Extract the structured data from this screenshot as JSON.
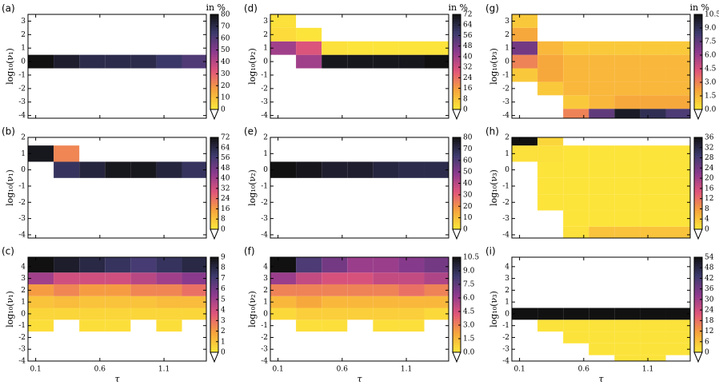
{
  "chart_data": [
    {
      "type": "heatmap",
      "label": "(a)",
      "unit": "in %",
      "ylabel": "log₁₀(ν₁)",
      "xlim": [
        0.04,
        1.43
      ],
      "xticks": [
        0.1,
        0.6,
        1.1
      ],
      "ylim": [
        -4.2,
        3.5
      ],
      "yticks": [
        -4,
        -3,
        -2,
        -1,
        0,
        1,
        2,
        3
      ],
      "xbins": [
        0.04,
        0.24,
        0.44,
        0.64,
        0.84,
        1.04,
        1.24,
        1.43
      ],
      "ybins": [
        -4.2,
        -3.5,
        -2.5,
        -1.5,
        -0.5,
        0.5,
        1.5,
        2.5,
        3.5
      ],
      "matrix": [
        [
          null,
          null,
          null,
          null,
          null,
          null,
          null
        ],
        [
          null,
          null,
          null,
          null,
          null,
          null,
          null
        ],
        [
          null,
          null,
          null,
          null,
          null,
          null,
          null
        ],
        [
          null,
          null,
          null,
          null,
          null,
          null,
          null
        ],
        [
          80,
          75,
          70,
          70,
          70,
          65,
          60
        ],
        [
          null,
          null,
          null,
          null,
          null,
          null,
          null
        ],
        [
          null,
          null,
          null,
          null,
          null,
          null,
          null
        ],
        [
          null,
          null,
          null,
          null,
          null,
          null,
          null
        ]
      ],
      "clim": [
        0,
        80
      ],
      "cticks": [
        0,
        10,
        20,
        30,
        40,
        50,
        60,
        70,
        80
      ],
      "colormap": [
        "#fde93b",
        "#f7a53c",
        "#e2567a",
        "#8e3a8e",
        "#3d3b6e",
        "#111111"
      ]
    },
    {
      "type": "heatmap",
      "label": "(b)",
      "ylabel": "log₁₀(ν₁)",
      "xlim": [
        0.04,
        1.43
      ],
      "xticks": [
        0.1,
        0.6,
        1.1
      ],
      "ylim": [
        -4.2,
        2
      ],
      "yticks": [
        -4,
        -3,
        -2,
        -1,
        0,
        1,
        2
      ],
      "xbins": [
        0.04,
        0.24,
        0.44,
        0.64,
        0.84,
        1.04,
        1.24,
        1.43
      ],
      "ybins": [
        -4.2,
        -3.5,
        -2.5,
        -1.5,
        -0.5,
        0.5,
        1.5,
        2
      ],
      "matrix": [
        [
          null,
          null,
          null,
          null,
          null,
          null,
          null
        ],
        [
          null,
          null,
          null,
          null,
          null,
          null,
          null
        ],
        [
          null,
          null,
          null,
          null,
          null,
          null,
          null
        ],
        [
          null,
          null,
          null,
          null,
          null,
          null,
          null
        ],
        [
          null,
          60,
          65,
          70,
          70,
          65,
          60
        ],
        [
          70,
          20,
          null,
          null,
          null,
          null,
          null
        ],
        [
          null,
          null,
          null,
          null,
          null,
          null,
          null
        ]
      ],
      "clim": [
        0,
        72
      ],
      "cticks": [
        0,
        8,
        16,
        24,
        32,
        40,
        48,
        56,
        64,
        72
      ],
      "colormap": [
        "#fde93b",
        "#f7a53c",
        "#e2567a",
        "#8e3a8e",
        "#3d3b6e",
        "#111111"
      ]
    },
    {
      "type": "heatmap",
      "label": "(c)",
      "ylabel": "log₁₀(ν₁)",
      "xlabel": "τ",
      "xlim": [
        0.04,
        1.43
      ],
      "xticks": [
        0.1,
        0.6,
        1.1
      ],
      "ylim": [
        -4,
        4.8
      ],
      "yticks": [
        -4,
        -3,
        -2,
        -1,
        0,
        1,
        2,
        3,
        4
      ],
      "xbins": [
        0.04,
        0.24,
        0.44,
        0.64,
        0.84,
        1.04,
        1.24,
        1.43
      ],
      "ybins": [
        -4,
        -3.5,
        -2.5,
        -1.5,
        -0.5,
        0.5,
        1.5,
        2.5,
        3.5,
        4.8
      ],
      "matrix": [
        [
          null,
          null,
          null,
          null,
          null,
          null,
          null
        ],
        [
          null,
          null,
          null,
          null,
          null,
          null,
          null
        ],
        [
          null,
          null,
          null,
          null,
          null,
          null,
          null
        ],
        [
          0.3,
          null,
          0.3,
          0.3,
          null,
          0.3,
          null
        ],
        [
          0.5,
          0.5,
          0.5,
          0.5,
          0.5,
          0.5,
          0.5
        ],
        [
          1,
          1.2,
          1,
          1,
          1,
          1.2,
          1.2
        ],
        [
          2,
          2.5,
          2,
          2,
          2.5,
          2.5,
          3
        ],
        [
          5,
          4,
          4,
          4,
          4.5,
          5,
          5.5
        ],
        [
          9,
          8.5,
          8,
          7.5,
          7,
          7.5,
          8
        ]
      ],
      "clim": [
        0,
        9
      ],
      "cticks": [
        0,
        1,
        2,
        3,
        4,
        5,
        6,
        7,
        8,
        9
      ],
      "colormap": [
        "#fde93b",
        "#f7a53c",
        "#e2567a",
        "#8e3a8e",
        "#3d3b6e",
        "#111111"
      ]
    },
    {
      "type": "heatmap",
      "label": "(d)",
      "unit": "in %",
      "ylabel": "log₁₀(ν₂)",
      "xlim": [
        0.04,
        1.43
      ],
      "xticks": [
        0.1,
        0.6,
        1.1
      ],
      "ylim": [
        -4.2,
        3.5
      ],
      "yticks": [
        -4,
        -3,
        -2,
        -1,
        0,
        1,
        2,
        3
      ],
      "xbins": [
        0.04,
        0.24,
        0.44,
        0.64,
        0.84,
        1.04,
        1.24,
        1.43
      ],
      "ybins": [
        -4.2,
        -3.5,
        -2.5,
        -1.5,
        -0.5,
        0.5,
        1.5,
        2.5,
        3.5
      ],
      "matrix": [
        [
          null,
          null,
          null,
          null,
          null,
          null,
          null
        ],
        [
          null,
          null,
          null,
          null,
          null,
          null,
          null
        ],
        [
          null,
          null,
          null,
          null,
          null,
          null,
          null
        ],
        [
          null,
          null,
          null,
          null,
          null,
          null,
          null
        ],
        [
          null,
          40,
          70,
          70,
          70,
          70,
          72
        ],
        [
          40,
          30,
          2,
          1,
          1,
          1,
          1
        ],
        [
          3,
          1,
          null,
          null,
          null,
          null,
          null
        ],
        [
          2,
          null,
          null,
          null,
          null,
          null,
          null
        ]
      ],
      "clim": [
        0,
        72
      ],
      "cticks": [
        0,
        8,
        16,
        24,
        32,
        40,
        48,
        56,
        64,
        72
      ],
      "colormap": [
        "#fde93b",
        "#f7a53c",
        "#e2567a",
        "#8e3a8e",
        "#3d3b6e",
        "#111111"
      ]
    },
    {
      "type": "heatmap",
      "label": "(e)",
      "ylabel": "log₁₀(ν₂)",
      "xlim": [
        0.04,
        1.43
      ],
      "xticks": [
        0.1,
        0.6,
        1.1
      ],
      "ylim": [
        -4.2,
        2
      ],
      "yticks": [
        -4,
        -3,
        -2,
        -1,
        0,
        1,
        2
      ],
      "xbins": [
        0.04,
        0.24,
        0.44,
        0.64,
        0.84,
        1.04,
        1.24,
        1.43
      ],
      "ybins": [
        -4.2,
        -3.5,
        -2.5,
        -1.5,
        -0.5,
        0.5,
        1.5,
        2
      ],
      "matrix": [
        [
          null,
          null,
          null,
          null,
          null,
          null,
          null
        ],
        [
          null,
          null,
          null,
          null,
          null,
          null,
          null
        ],
        [
          null,
          null,
          null,
          null,
          null,
          null,
          null
        ],
        [
          null,
          null,
          null,
          null,
          null,
          null,
          null
        ],
        [
          80,
          78,
          75,
          75,
          72,
          70,
          70
        ],
        [
          null,
          null,
          null,
          null,
          null,
          null,
          null
        ],
        [
          null,
          null,
          null,
          null,
          null,
          null,
          null
        ]
      ],
      "clim": [
        0,
        80
      ],
      "cticks": [
        0,
        10,
        20,
        30,
        40,
        50,
        60,
        70,
        80
      ],
      "colormap": [
        "#fde93b",
        "#f7a53c",
        "#e2567a",
        "#8e3a8e",
        "#3d3b6e",
        "#111111"
      ]
    },
    {
      "type": "heatmap",
      "label": "(f)",
      "ylabel": "log₁₀(ν₂)",
      "xlabel": "τ",
      "xlim": [
        0.04,
        1.43
      ],
      "xticks": [
        0.1,
        0.6,
        1.1
      ],
      "ylim": [
        -4,
        4.8
      ],
      "yticks": [
        -4,
        -3,
        -2,
        -1,
        0,
        1,
        2,
        3,
        4
      ],
      "xbins": [
        0.04,
        0.24,
        0.44,
        0.64,
        0.84,
        1.04,
        1.24,
        1.43
      ],
      "ybins": [
        -4,
        -3.5,
        -2.5,
        -1.5,
        -0.5,
        0.5,
        1.5,
        2.5,
        3.5,
        4.8
      ],
      "matrix": [
        [
          null,
          null,
          null,
          null,
          null,
          null,
          null
        ],
        [
          null,
          null,
          null,
          null,
          null,
          null,
          null
        ],
        [
          null,
          null,
          null,
          null,
          null,
          null,
          null
        ],
        [
          null,
          0.3,
          0.3,
          null,
          0.3,
          0.3,
          null
        ],
        [
          0.5,
          0.8,
          0.8,
          0.8,
          0.8,
          0.8,
          0.5
        ],
        [
          1.5,
          2,
          1.5,
          1.5,
          1.5,
          1.5,
          1.5
        ],
        [
          3,
          3,
          3,
          3,
          3,
          3.5,
          3
        ],
        [
          6,
          5,
          4.5,
          4.5,
          5,
          5,
          5.5
        ],
        [
          10.5,
          8,
          7,
          6,
          6,
          6.5,
          7
        ]
      ],
      "clim": [
        0,
        10.5
      ],
      "cticks": [
        {
          "value": 0,
          "label": "0.0"
        },
        1.5,
        {
          "value": 3,
          "label": "3.0"
        },
        4.5,
        {
          "value": 6,
          "label": "6.0"
        },
        7.5,
        {
          "value": 9,
          "label": "9.0"
        },
        10.5
      ],
      "colormap": [
        "#fde93b",
        "#f7a53c",
        "#e2567a",
        "#8e3a8e",
        "#3d3b6e",
        "#111111"
      ]
    },
    {
      "type": "heatmap",
      "label": "(g)",
      "unit": "in %",
      "ylabel": "log₁₀(ν₃)",
      "xlim": [
        0.04,
        1.43
      ],
      "xticks": [
        0.1,
        0.6,
        1.1
      ],
      "ylim": [
        -4.2,
        3.5
      ],
      "yticks": [
        -4,
        -3,
        -2,
        -1,
        0,
        1,
        2,
        3
      ],
      "xbins": [
        0.04,
        0.24,
        0.44,
        0.64,
        0.84,
        1.04,
        1.24,
        1.43
      ],
      "ybins": [
        -4.2,
        -3.5,
        -2.5,
        -1.5,
        -0.5,
        0.5,
        1.5,
        2.5,
        3.5
      ],
      "matrix": [
        [
          null,
          null,
          3,
          7.5,
          10,
          9,
          8
        ],
        [
          null,
          null,
          1,
          1.5,
          2,
          2,
          2
        ],
        [
          null,
          1,
          1.5,
          1.5,
          1.5,
          1.5,
          1.5
        ],
        [
          1,
          2,
          1.5,
          1.5,
          1.5,
          1.5,
          1.5
        ],
        [
          3,
          2,
          1.5,
          1.5,
          1.5,
          1.5,
          1.5
        ],
        [
          7,
          1.5,
          1,
          1,
          1,
          1,
          1
        ],
        [
          2,
          null,
          null,
          null,
          null,
          null,
          null
        ],
        [
          1,
          null,
          null,
          null,
          null,
          null,
          null
        ]
      ],
      "clim": [
        0,
        10.5
      ],
      "cticks": [
        {
          "value": 0,
          "label": "0.0"
        },
        1.5,
        {
          "value": 3,
          "label": "3.0"
        },
        4.5,
        {
          "value": 6,
          "label": "6.0"
        },
        7.5,
        {
          "value": 9,
          "label": "9.0"
        },
        10.5
      ],
      "colormap": [
        "#fde93b",
        "#f7a53c",
        "#e2567a",
        "#8e3a8e",
        "#3d3b6e",
        "#111111"
      ]
    },
    {
      "type": "heatmap",
      "label": "(h)",
      "ylabel": "log₁₀(ν₃)",
      "xlim": [
        0.04,
        1.43
      ],
      "xticks": [
        0.1,
        0.6,
        1.1
      ],
      "ylim": [
        -4.2,
        2
      ],
      "yticks": [
        -4,
        -3,
        -2,
        -1,
        0,
        1,
        2
      ],
      "xbins": [
        0.04,
        0.24,
        0.44,
        0.64,
        0.84,
        1.04,
        1.24,
        1.43
      ],
      "ybins": [
        -4.2,
        -3.5,
        -2.5,
        -1.5,
        -0.5,
        0.5,
        1.5,
        2
      ],
      "matrix": [
        [
          null,
          null,
          1,
          4,
          4,
          4,
          4
        ],
        [
          null,
          null,
          0.5,
          0.5,
          0.5,
          0.5,
          0.5
        ],
        [
          null,
          0.5,
          0.5,
          0.5,
          0.5,
          0.5,
          0.5
        ],
        [
          null,
          0.5,
          0.5,
          0.5,
          0.5,
          0.5,
          0.5
        ],
        [
          null,
          0.5,
          0.5,
          0.5,
          0.5,
          0.5,
          0.5
        ],
        [
          1,
          1,
          0.5,
          0.5,
          0.5,
          0.5,
          0.5
        ],
        [
          36,
          2,
          null,
          null,
          null,
          null,
          null
        ]
      ],
      "clim": [
        0,
        36
      ],
      "cticks": [
        0,
        4,
        8,
        12,
        16,
        20,
        24,
        28,
        32,
        36
      ],
      "colormap": [
        "#fde93b",
        "#f7a53c",
        "#e2567a",
        "#8e3a8e",
        "#3d3b6e",
        "#111111"
      ]
    },
    {
      "type": "heatmap",
      "label": "(i)",
      "ylabel": "log₁₀(ν₃)",
      "xlabel": "τ",
      "xlim": [
        0.04,
        1.43
      ],
      "xticks": [
        0.1,
        0.6,
        1.1
      ],
      "ylim": [
        -4,
        4.8
      ],
      "yticks": [
        -4,
        -3,
        -2,
        -1,
        0,
        1,
        2,
        3,
        4
      ],
      "xbins": [
        0.04,
        0.24,
        0.44,
        0.64,
        0.84,
        1.04,
        1.24,
        1.43
      ],
      "ybins": [
        -4,
        -3.5,
        -2.5,
        -1.5,
        -0.5,
        0.5,
        1.5,
        2.5,
        3.5,
        4.8
      ],
      "matrix": [
        [
          null,
          null,
          null,
          null,
          1,
          1,
          null
        ],
        [
          null,
          null,
          null,
          1,
          1,
          1,
          1
        ],
        [
          null,
          null,
          1,
          1,
          1,
          1,
          1
        ],
        [
          null,
          1,
          1,
          1,
          1,
          1,
          1
        ],
        [
          54,
          54,
          54,
          54,
          54,
          54,
          54
        ],
        [
          null,
          null,
          null,
          null,
          null,
          null,
          null
        ],
        [
          null,
          null,
          null,
          null,
          null,
          null,
          null
        ],
        [
          null,
          null,
          null,
          null,
          null,
          null,
          null
        ],
        [
          null,
          null,
          null,
          null,
          null,
          null,
          null
        ]
      ],
      "clim": [
        0,
        54
      ],
      "cticks": [
        0,
        6,
        12,
        18,
        24,
        30,
        36,
        42,
        48,
        54
      ],
      "colormap": [
        "#fde93b",
        "#f7a53c",
        "#e2567a",
        "#8e3a8e",
        "#3d3b6e",
        "#111111"
      ]
    }
  ]
}
